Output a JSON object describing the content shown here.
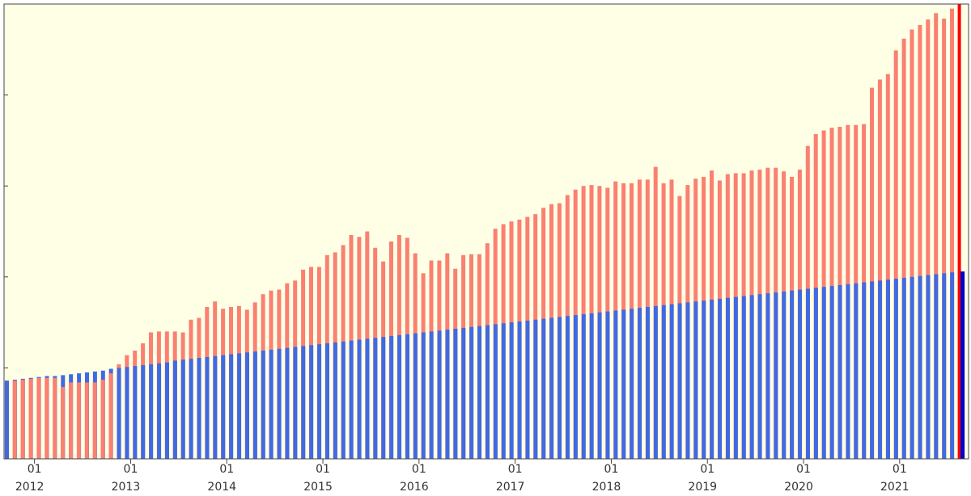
{
  "chart_data": {
    "type": "bar",
    "title": "",
    "xlabel": "",
    "ylabel": "",
    "grid": false,
    "legend": "none",
    "x_axis": {
      "month_ticks": [
        {
          "label": "01",
          "date": "2012-01"
        },
        {
          "label": "01",
          "date": "2013-01"
        },
        {
          "label": "01",
          "date": "2014-01"
        },
        {
          "label": "01",
          "date": "2015-01"
        },
        {
          "label": "01",
          "date": "2016-01"
        },
        {
          "label": "01",
          "date": "2017-01"
        },
        {
          "label": "01",
          "date": "2018-01"
        },
        {
          "label": "01",
          "date": "2019-01"
        },
        {
          "label": "01",
          "date": "2020-01"
        },
        {
          "label": "01",
          "date": "2021-01"
        }
      ],
      "year_labels": [
        "2012",
        "2013",
        "2014",
        "2015",
        "2016",
        "2017",
        "2018",
        "2019",
        "2020",
        "2021"
      ]
    },
    "ylim": [
      0,
      500
    ],
    "y_ticks": [
      100,
      200,
      300,
      400
    ],
    "start_month": "2011-10",
    "series": [
      {
        "color": "#fa8072",
        "highlight_color": "#ff0000",
        "values": [
          86,
          86,
          87,
          88,
          89,
          89,
          89,
          79,
          84,
          84,
          84,
          84,
          87,
          94,
          104,
          114,
          119,
          127,
          139,
          140,
          140,
          140,
          139,
          153,
          155,
          167,
          173,
          165,
          167,
          168,
          164,
          172,
          181,
          185,
          186,
          193,
          196,
          208,
          211,
          211,
          224,
          227,
          235,
          246,
          244,
          250,
          232,
          217,
          239,
          246,
          243,
          226,
          204,
          218,
          218,
          226,
          209,
          224,
          225,
          225,
          237,
          253,
          258,
          261,
          263,
          266,
          269,
          276,
          280,
          281,
          290,
          296,
          300,
          301,
          300,
          298,
          305,
          303,
          303,
          307,
          307,
          321,
          303,
          307,
          289,
          301,
          308,
          310,
          317,
          306,
          313,
          314,
          314,
          317,
          318,
          320,
          320,
          316,
          310,
          318,
          344,
          357,
          361,
          364,
          365,
          367,
          367,
          368,
          408,
          417,
          423,
          449,
          462,
          472,
          477,
          483,
          490,
          484,
          495,
          500
        ]
      },
      {
        "color": "#4169e1",
        "highlight_color": "#0000cd",
        "values": [
          86,
          87,
          88,
          89,
          90,
          91,
          91,
          92,
          93,
          94,
          95,
          96,
          97,
          99,
          100,
          101,
          102,
          103,
          104,
          105,
          106,
          108,
          109,
          110,
          111,
          112,
          113,
          114,
          115,
          116,
          117,
          118,
          119,
          120,
          121,
          122,
          123,
          124,
          125,
          126,
          127,
          128,
          129,
          130,
          131,
          132,
          133,
          134,
          135,
          136,
          137,
          138,
          139,
          140,
          141,
          142,
          143,
          144,
          145,
          146,
          147,
          148,
          149,
          150,
          151,
          152,
          153,
          154,
          155,
          156,
          157,
          158,
          159,
          160,
          161,
          162,
          163,
          164,
          165,
          166,
          167,
          168,
          169,
          170,
          171,
          172,
          173,
          174,
          175,
          176,
          177,
          178,
          179,
          180,
          181,
          182,
          183,
          184,
          185,
          186,
          187,
          188,
          189,
          190,
          191,
          192,
          193,
          194,
          195,
          196,
          197,
          198,
          199,
          200,
          201,
          202,
          203,
          204,
          205,
          206
        ]
      }
    ]
  }
}
